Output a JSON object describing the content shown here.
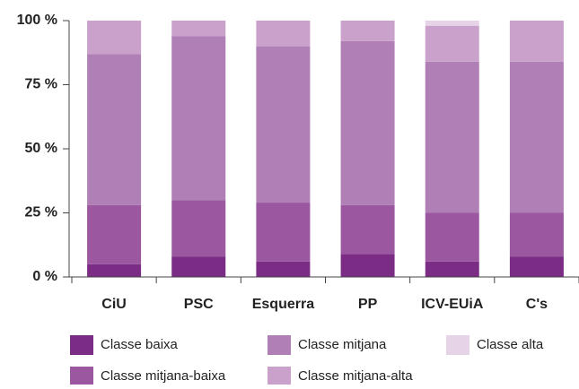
{
  "chart_data": {
    "type": "stacked_bar",
    "categories": [
      "CiU",
      "PSC",
      "Esquerra",
      "PP",
      "ICV-EUiA",
      "C's"
    ],
    "series": [
      {
        "name": "Classe baixa",
        "color": "#7b2d86",
        "values": [
          5,
          8,
          6,
          9,
          6,
          8
        ]
      },
      {
        "name": "Classe mitjana-baixa",
        "color": "#9b579f",
        "values": [
          23,
          22,
          23,
          19,
          19,
          17
        ]
      },
      {
        "name": "Classe mitjana",
        "color": "#b07fb6",
        "values": [
          59,
          64,
          61,
          64,
          59,
          59
        ]
      },
      {
        "name": "Classe mitjana-alta",
        "color": "#c9a1cb",
        "values": [
          13,
          6,
          10,
          8,
          14,
          16
        ]
      },
      {
        "name": "Classe alta",
        "color": "#e6d3e7",
        "values": [
          0,
          0,
          0,
          0,
          2,
          0
        ]
      }
    ],
    "ylim": [
      0,
      100
    ],
    "yticks": [
      {
        "value": 0,
        "label": "0 %"
      },
      {
        "value": 25,
        "label": "25 %"
      },
      {
        "value": 50,
        "label": "50 %"
      },
      {
        "value": 75,
        "label": "75 %"
      },
      {
        "value": 100,
        "label": "100 %"
      }
    ],
    "grid": false
  }
}
